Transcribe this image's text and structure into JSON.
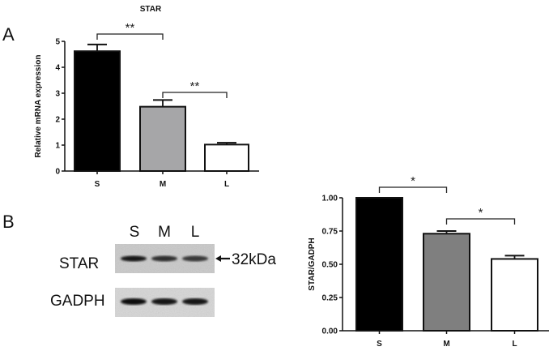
{
  "panels": {
    "a": {
      "letter": "A"
    },
    "b": {
      "letter": "B"
    }
  },
  "blot": {
    "lanes": [
      "S",
      "M",
      "L"
    ],
    "rows": [
      {
        "label": "STAR",
        "marker": "32kDa",
        "band_intensity": [
          0.85,
          0.65,
          0.55
        ]
      },
      {
        "label": "GADPH",
        "band_intensity": [
          0.95,
          0.92,
          0.9
        ]
      }
    ],
    "arrow": "←"
  },
  "chart_data": [
    {
      "type": "bar",
      "title": "STAR",
      "xlabel": "",
      "ylabel": "Relative mRNA expression",
      "categories": [
        "S",
        "M",
        "L"
      ],
      "values": [
        4.62,
        2.48,
        1.02
      ],
      "errors": [
        0.26,
        0.26,
        0.07
      ],
      "bar_colors": [
        "#000000",
        "#a6a6a8",
        "#ffffff"
      ],
      "ylim": [
        0,
        5
      ],
      "yticks": [
        "0",
        "1",
        "2",
        "3",
        "4",
        "5"
      ],
      "grid": false,
      "significance": [
        {
          "from": "S",
          "to": "M",
          "label": "**"
        },
        {
          "from": "M",
          "to": "L",
          "label": "**"
        }
      ]
    },
    {
      "type": "bar",
      "title": "",
      "xlabel": "",
      "ylabel": "STAR/GADPH",
      "categories": [
        "S",
        "M",
        "L"
      ],
      "values": [
        1.0,
        0.73,
        0.54
      ],
      "errors": [
        0.0,
        0.02,
        0.025
      ],
      "bar_colors": [
        "#000000",
        "#7f7f7f",
        "#ffffff"
      ],
      "ylim": [
        0,
        1.0
      ],
      "yticks": [
        "0.00",
        "0.25",
        "0.50",
        "0.75",
        "1.00"
      ],
      "grid": false,
      "significance": [
        {
          "from": "S",
          "to": "M",
          "label": "*"
        },
        {
          "from": "M",
          "to": "L",
          "label": "*"
        }
      ]
    }
  ]
}
